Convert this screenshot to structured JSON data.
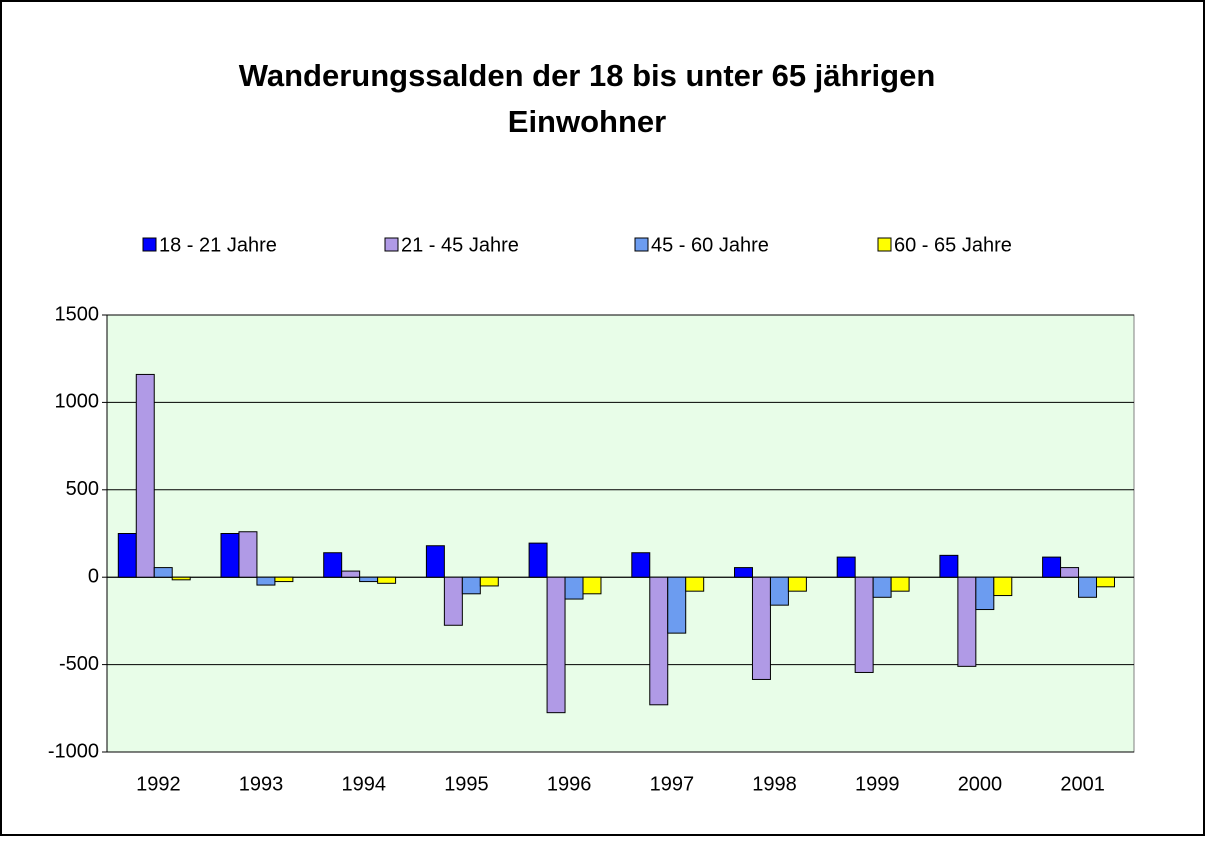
{
  "chart_data": {
    "type": "bar",
    "title": [
      "Wanderungssalden der 18 bis unter 65 jährigen",
      "Einwohner"
    ],
    "categories": [
      "1992",
      "1993",
      "1994",
      "1995",
      "1996",
      "1997",
      "1998",
      "1999",
      "2000",
      "2001"
    ],
    "series": [
      {
        "name": "18 - 21 Jahre",
        "color": "#0000ff",
        "values": [
          250,
          250,
          140,
          180,
          195,
          140,
          55,
          115,
          125,
          115
        ]
      },
      {
        "name": "21 - 45 Jahre",
        "color": "#b09ae6",
        "values": [
          1160,
          260,
          35,
          -275,
          -775,
          -730,
          -585,
          -545,
          -510,
          55
        ]
      },
      {
        "name": "45 - 60 Jahre",
        "color": "#6c9cf0",
        "values": [
          55,
          -45,
          -25,
          -95,
          -125,
          -320,
          -160,
          -115,
          -185,
          -115
        ]
      },
      {
        "name": "60 - 65 Jahre",
        "color": "#ffff00",
        "values": [
          -15,
          -25,
          -35,
          -50,
          -95,
          -80,
          -80,
          -80,
          -105,
          -55
        ]
      }
    ],
    "ylim": [
      -1000,
      1500
    ],
    "yticks": [
      -1000,
      -500,
      0,
      500,
      1000,
      1500
    ],
    "grid": true,
    "legend": "top",
    "plot_background": "#e8fde8"
  }
}
